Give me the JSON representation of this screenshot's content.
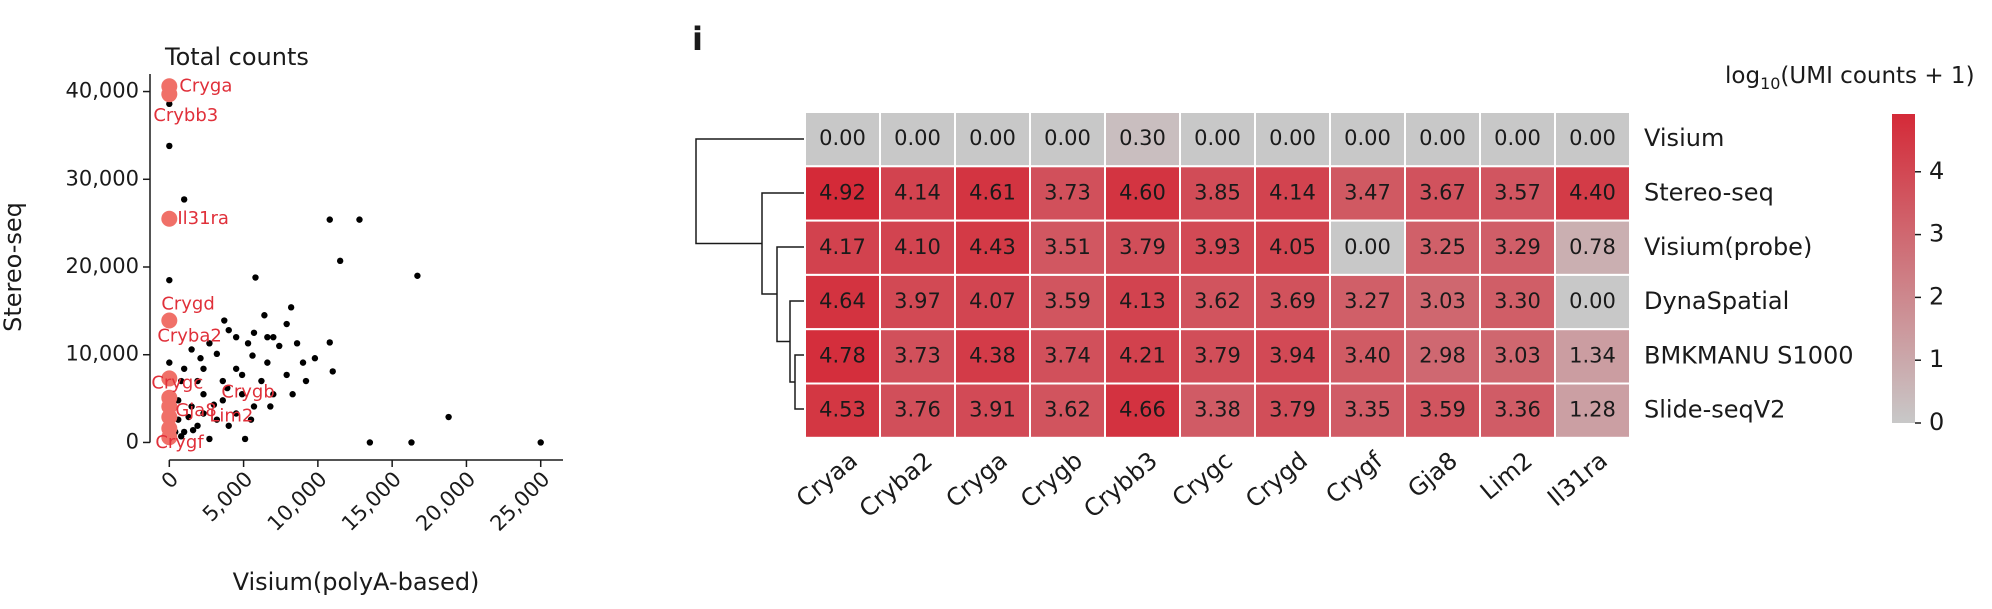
{
  "chart_data": [
    {
      "type": "scatter",
      "title": "Total counts",
      "x_label": "Visium(polyA-based)",
      "y_label": "Stereo-seq",
      "xlim": [
        -1300,
        26500
      ],
      "ylim": [
        -2000,
        42000
      ],
      "xticks": [
        0,
        {
          "value": 5000,
          "label": "5,000"
        },
        {
          "value": 10000,
          "label": "10,000"
        },
        {
          "value": 15000,
          "label": "15,000"
        },
        {
          "value": 20000,
          "label": "20,000"
        },
        {
          "value": 25000,
          "label": "25,000"
        }
      ],
      "yticks": [
        0,
        {
          "value": 10000,
          "label": "10,000"
        },
        {
          "value": 20000,
          "label": "20,000"
        },
        {
          "value": 30000,
          "label": "30,000"
        },
        {
          "value": 40000,
          "label": "40,000"
        }
      ],
      "series": [
        {
          "color": "#000000",
          "x": [
            0,
            1000,
            0,
            5800,
            10800,
            12800,
            11500,
            16700,
            10800,
            11000,
            18800,
            13500,
            16300,
            25000,
            0,
            8200,
            7900,
            6400,
            3700,
            9000,
            9800,
            8600,
            7400,
            6600,
            5300,
            4500,
            2700,
            1500,
            0,
            2300,
            3600,
            4900,
            6200,
            7000,
            7900,
            5700,
            4500,
            3200,
            1900,
            1000,
            2700,
            4000,
            5100,
            600,
            1500,
            2300,
            3600,
            4900,
            6600,
            9200,
            8300,
            6800,
            5500,
            800,
            1900,
            600,
            1300,
            400,
            300,
            800,
            1600,
            2300,
            3000,
            3900,
            4500,
            5600,
            7000,
            5700,
            4000,
            3200,
            2100,
            1000
          ],
          "y": [
            33800,
            27700,
            18500,
            18800,
            25400,
            25400,
            20700,
            19000,
            11400,
            8100,
            2900,
            0,
            0,
            0,
            38600,
            15400,
            13500,
            14500,
            13900,
            9100,
            9600,
            11300,
            11000,
            12000,
            11300,
            12000,
            11300,
            10600,
            9100,
            8400,
            7000,
            7700,
            7000,
            5500,
            7700,
            4100,
            3300,
            2600,
            1900,
            1200,
            400,
            1900,
            400,
            2600,
            4100,
            5500,
            4800,
            5500,
            9100,
            7000,
            5500,
            4100,
            2600,
            7000,
            7000,
            4800,
            2900,
            1200,
            400,
            700,
            1400,
            3300,
            4300,
            6200,
            8400,
            9900,
            12000,
            12500,
            12800,
            10100,
            9600,
            8400
          ]
        },
        {
          "color": "#f07068",
          "label_color": "#e0303a",
          "labels": [
            "Cryga",
            "Crybb3",
            "Il31ra",
            "Crygd",
            "Cryba2",
            "Crygc",
            "Crygb",
            "Gja8",
            "Lim2",
            "Crygf"
          ],
          "x": [
            0,
            0,
            0,
            0,
            0,
            0,
            0,
            0,
            0,
            0
          ],
          "y": [
            40600,
            39700,
            25500,
            13900,
            7300,
            5100,
            4100,
            2900,
            1600,
            600
          ]
        }
      ]
    },
    {
      "type": "heatmap",
      "panel_label": "i",
      "colorbar_label": {
        "prefix": "log",
        "sub": "10",
        "suffix": "(UMI counts + 1)"
      },
      "rows": [
        "Visium",
        "Stereo-seq",
        "Visium(probe)",
        "DynaSpatial",
        "BMKMANU S1000",
        "Slide-seqV2"
      ],
      "columns": [
        "Cryaa",
        "Cryba2",
        "Cryga",
        "Crygb",
        "Crybb3",
        "Crygc",
        "Crygd",
        "Crygf",
        "Gja8",
        "Lim2",
        "Il31ra"
      ],
      "values": [
        [
          0,
          0,
          0,
          0,
          0.3,
          0,
          0,
          0,
          0,
          0,
          0
        ],
        [
          4.92,
          4.14,
          4.61,
          3.73,
          4.6,
          3.85,
          4.14,
          3.47,
          3.67,
          3.57,
          4.4
        ],
        [
          4.17,
          4.1,
          4.43,
          3.51,
          3.79,
          3.93,
          4.05,
          0,
          3.25,
          3.29,
          0.78
        ],
        [
          4.64,
          3.97,
          4.07,
          3.59,
          4.13,
          3.62,
          3.69,
          3.27,
          3.03,
          3.3,
          0
        ],
        [
          4.78,
          3.73,
          4.38,
          3.74,
          4.21,
          3.79,
          3.94,
          3.4,
          2.98,
          3.03,
          1.34
        ],
        [
          4.53,
          3.76,
          3.91,
          3.62,
          4.66,
          3.38,
          3.79,
          3.35,
          3.59,
          3.36,
          1.28
        ]
      ],
      "value_labels": [
        [
          "0.00",
          "0.00",
          "0.00",
          "0.00",
          "0.30",
          "0.00",
          "0.00",
          "0.00",
          "0.00",
          "0.00",
          "0.00"
        ],
        [
          "4.92",
          "4.14",
          "4.61",
          "3.73",
          "4.60",
          "3.85",
          "4.14",
          "3.47",
          "3.67",
          "3.57",
          "4.40"
        ],
        [
          "4.17",
          "4.10",
          "4.43",
          "3.51",
          "3.79",
          "3.93",
          "4.05",
          "0.00",
          "3.25",
          "3.29",
          "0.78"
        ],
        [
          "4.64",
          "3.97",
          "4.07",
          "3.59",
          "4.13",
          "3.62",
          "3.69",
          "3.27",
          "3.03",
          "3.30",
          "0.00"
        ],
        [
          "4.78",
          "3.73",
          "4.38",
          "3.74",
          "4.21",
          "3.79",
          "3.94",
          "3.40",
          "2.98",
          "3.03",
          "1.34"
        ],
        [
          "4.53",
          "3.76",
          "3.91",
          "3.62",
          "4.66",
          "3.38",
          "3.79",
          "3.35",
          "3.59",
          "3.36",
          "1.28"
        ]
      ],
      "clim": [
        0,
        4.92
      ],
      "cticks": [
        0,
        1,
        2,
        3,
        4
      ],
      "low_color": "#c8c8c8",
      "high_color": "#d42a38"
    }
  ]
}
